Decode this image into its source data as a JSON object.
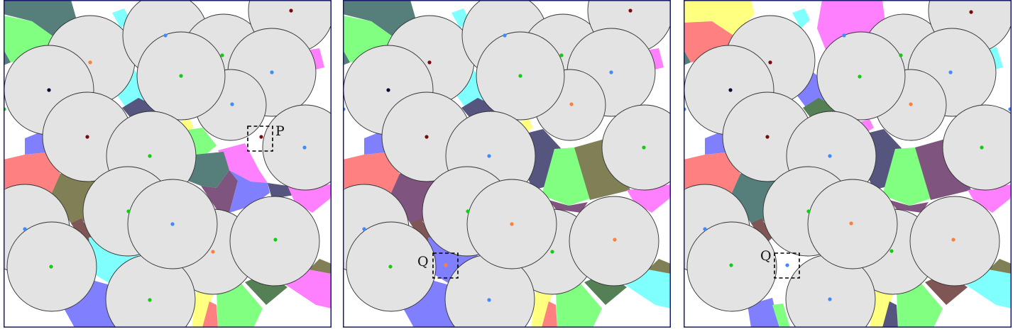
{
  "figure": {
    "panels": [
      {
        "id": "left",
        "marker": {
          "label": "P"
        }
      },
      {
        "id": "middle",
        "marker": {
          "label": "Q"
        }
      },
      {
        "id": "right",
        "marker": {
          "label": "Q"
        }
      }
    ],
    "colors": {
      "disk": "#e3e3e3",
      "disk_stroke": "#333333",
      "frame": "#1b1b6b",
      "teal": "#567f7b",
      "green": "#80ff80",
      "cyan": "#80ffff",
      "magenta": "#ff80ff",
      "salmon": "#ff8080",
      "blue": "#8080ff",
      "olive": "#807f55",
      "navy": "#55557f",
      "purple": "#7f557f",
      "brown": "#7f5555",
      "dark_green": "#558055",
      "yellow": "#ffff80",
      "site_blue": "#3d8bff",
      "site_green": "#11cc11",
      "site_orange": "#ff7f3a",
      "site_dark_red": "#7a0a0a",
      "site_black": "#0a0a33"
    }
  }
}
